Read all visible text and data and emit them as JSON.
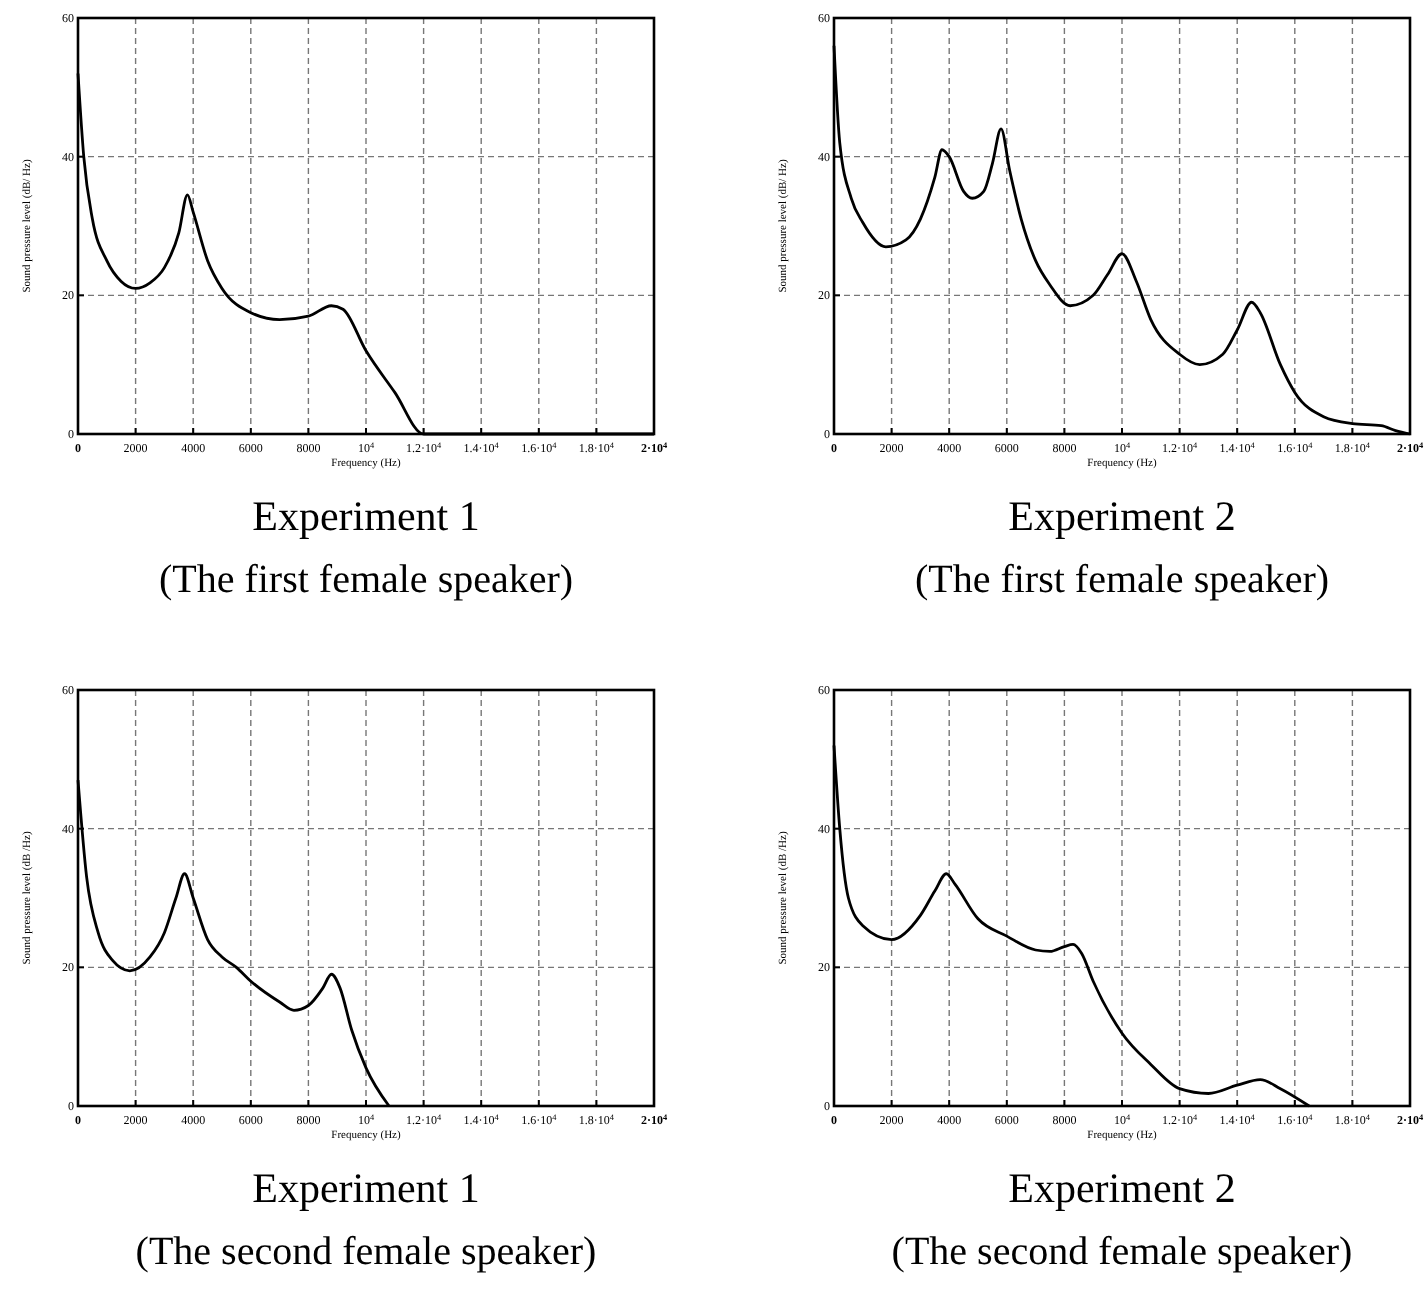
{
  "chart_data": [
    {
      "type": "line",
      "title": "Experiment 1",
      "subtitle": "(The first female speaker)",
      "xlabel": "Frequency (Hz)",
      "ylabel": "Sound pressure level (dB/ Hz)",
      "xlim": [
        0,
        20000
      ],
      "ylim": [
        0,
        60
      ],
      "xticks": [
        0,
        2000,
        4000,
        6000,
        8000,
        {
          "value": 10000,
          "label": "10$^{4}$"
        },
        {
          "value": 12000,
          "label": "1.2·10$^{4}$"
        },
        {
          "value": 14000,
          "label": "1.4·10$^{4}$"
        },
        {
          "value": 16000,
          "label": "1.6·10$^{4}$"
        },
        {
          "value": 18000,
          "label": "1.8·10$^{4}$"
        },
        {
          "value": 20000,
          "label": "2·10$^{4}$"
        }
      ],
      "yticks": [
        0,
        20,
        40,
        60
      ],
      "grid": true,
      "line_style": "solid",
      "marker": "none",
      "series": [
        {
          "color": "#000000",
          "x": [
            0,
            200,
            500,
            1000,
            1500,
            2000,
            2500,
            3000,
            3500,
            3800,
            4000,
            4500,
            5000,
            6000,
            7000,
            8000,
            8800,
            9200,
            10000,
            11000,
            12000,
            20000
          ],
          "values": [
            52,
            40,
            31,
            25,
            22,
            21,
            21.8,
            24,
            29,
            34.5,
            32,
            25,
            21,
            17.5,
            16.5,
            17,
            18.5,
            18,
            12,
            6,
            0,
            0
          ]
        }
      ]
    },
    {
      "type": "line",
      "title": "Experiment 2",
      "subtitle": "(The first female speaker)",
      "xlabel": "Frequency (Hz)",
      "ylabel": "Sound pressure level (dB/ Hz)",
      "xlim": [
        0,
        20000
      ],
      "ylim": [
        0,
        60
      ],
      "xticks": [
        0,
        2000,
        4000,
        6000,
        8000,
        {
          "value": 10000,
          "label": "10$^{4}$"
        },
        {
          "value": 12000,
          "label": "1.2·10$^{4}$"
        },
        {
          "value": 14000,
          "label": "1.4·10$^{4}$"
        },
        {
          "value": 16000,
          "label": "1.6·10$^{4}$"
        },
        {
          "value": 18000,
          "label": "1.8·10$^{4}$"
        },
        {
          "value": 20000,
          "label": "2·10$^{4}$"
        }
      ],
      "yticks": [
        0,
        20,
        40,
        60
      ],
      "grid": true,
      "line_style": "solid",
      "marker": "none",
      "series": [
        {
          "color": "#000000",
          "x": [
            0,
            200,
            600,
            1000,
            1800,
            2500,
            3000,
            3500,
            3750,
            4000,
            4500,
            4800,
            5200,
            5500,
            5800,
            6100,
            6500,
            7000,
            7500,
            8200,
            9000,
            9500,
            10000,
            10500,
            11000,
            12000,
            12700,
            13500,
            14000,
            14500,
            14800,
            15500,
            16000,
            17000,
            18000,
            19000,
            19500,
            20000
          ],
          "values": [
            56,
            42,
            34,
            30.5,
            27,
            28,
            31,
            37,
            41,
            40,
            35,
            34,
            35,
            39,
            44,
            38,
            31,
            25,
            21.5,
            18.5,
            20,
            23,
            26,
            22,
            16.5,
            11.5,
            10,
            11.5,
            15,
            19,
            17.5,
            10,
            6,
            2.5,
            1.5,
            1.2,
            0.5,
            0
          ]
        }
      ]
    },
    {
      "type": "line",
      "title": "Experiment 1",
      "subtitle": "(The second female speaker)",
      "xlabel": "Frequency (Hz)",
      "ylabel": "Sound pressure level (dB /Hz)",
      "xlim": [
        0,
        20000
      ],
      "ylim": [
        0,
        60
      ],
      "xticks": [
        0,
        2000,
        4000,
        6000,
        8000,
        {
          "value": 10000,
          "label": "10$^{4}$"
        },
        {
          "value": 12000,
          "label": "1.2·10$^{4}$"
        },
        {
          "value": 14000,
          "label": "1.4·10$^{4}$"
        },
        {
          "value": 16000,
          "label": "1.6·10$^{4}$"
        },
        {
          "value": 18000,
          "label": "1.8·10$^{4}$"
        },
        {
          "value": 20000,
          "label": "2·10$^{4}$"
        }
      ],
      "yticks": [
        0,
        20,
        40,
        60
      ],
      "grid": true,
      "line_style": "solid",
      "marker": "none",
      "series": [
        {
          "color": "#000000",
          "x": [
            0,
            300,
            700,
            1200,
            1800,
            2500,
            3000,
            3400,
            3700,
            4000,
            4500,
            5000,
            5500,
            6000,
            7000,
            7500,
            8000,
            8500,
            8800,
            9100,
            9500,
            10000,
            10800
          ],
          "values": [
            47,
            33,
            25,
            21,
            19.5,
            21.5,
            25,
            30,
            33.5,
            30,
            24,
            21.5,
            20,
            18,
            15,
            13.8,
            14.5,
            17,
            19,
            17,
            11,
            5.5,
            0
          ]
        }
      ]
    },
    {
      "type": "line",
      "title": "Experiment 2",
      "subtitle": "(The second female speaker)",
      "xlabel": "Frequency (Hz)",
      "ylabel": "Sound pressure level (dB /Hz)",
      "xlim": [
        0,
        20000
      ],
      "ylim": [
        0,
        60
      ],
      "xticks": [
        0,
        2000,
        4000,
        6000,
        8000,
        {
          "value": 10000,
          "label": "10$^{4}$"
        },
        {
          "value": 12000,
          "label": "1.2·10$^{4}$"
        },
        {
          "value": 14000,
          "label": "1.4·10$^{4}$"
        },
        {
          "value": 16000,
          "label": "1.6·10$^{4}$"
        },
        {
          "value": 18000,
          "label": "1.8·10$^{4}$"
        },
        {
          "value": 20000,
          "label": "2·10$^{4}$"
        }
      ],
      "yticks": [
        0,
        20,
        40,
        60
      ],
      "grid": true,
      "line_style": "solid",
      "marker": "none",
      "series": [
        {
          "color": "#000000",
          "x": [
            0,
            200,
            500,
            1000,
            2000,
            3000,
            3500,
            3900,
            4200,
            5000,
            6000,
            7000,
            7500,
            8000,
            8300,
            8600,
            9000,
            10000,
            11000,
            12000,
            13000,
            14000,
            14800,
            15500,
            16500
          ],
          "values": [
            52,
            40,
            30,
            26,
            24,
            27.5,
            31,
            33.5,
            32,
            27,
            24.5,
            22.5,
            22.3,
            23,
            23.3,
            22,
            18,
            10.5,
            6,
            2.5,
            1.8,
            3,
            3.8,
            2.5,
            0
          ]
        }
      ]
    }
  ]
}
